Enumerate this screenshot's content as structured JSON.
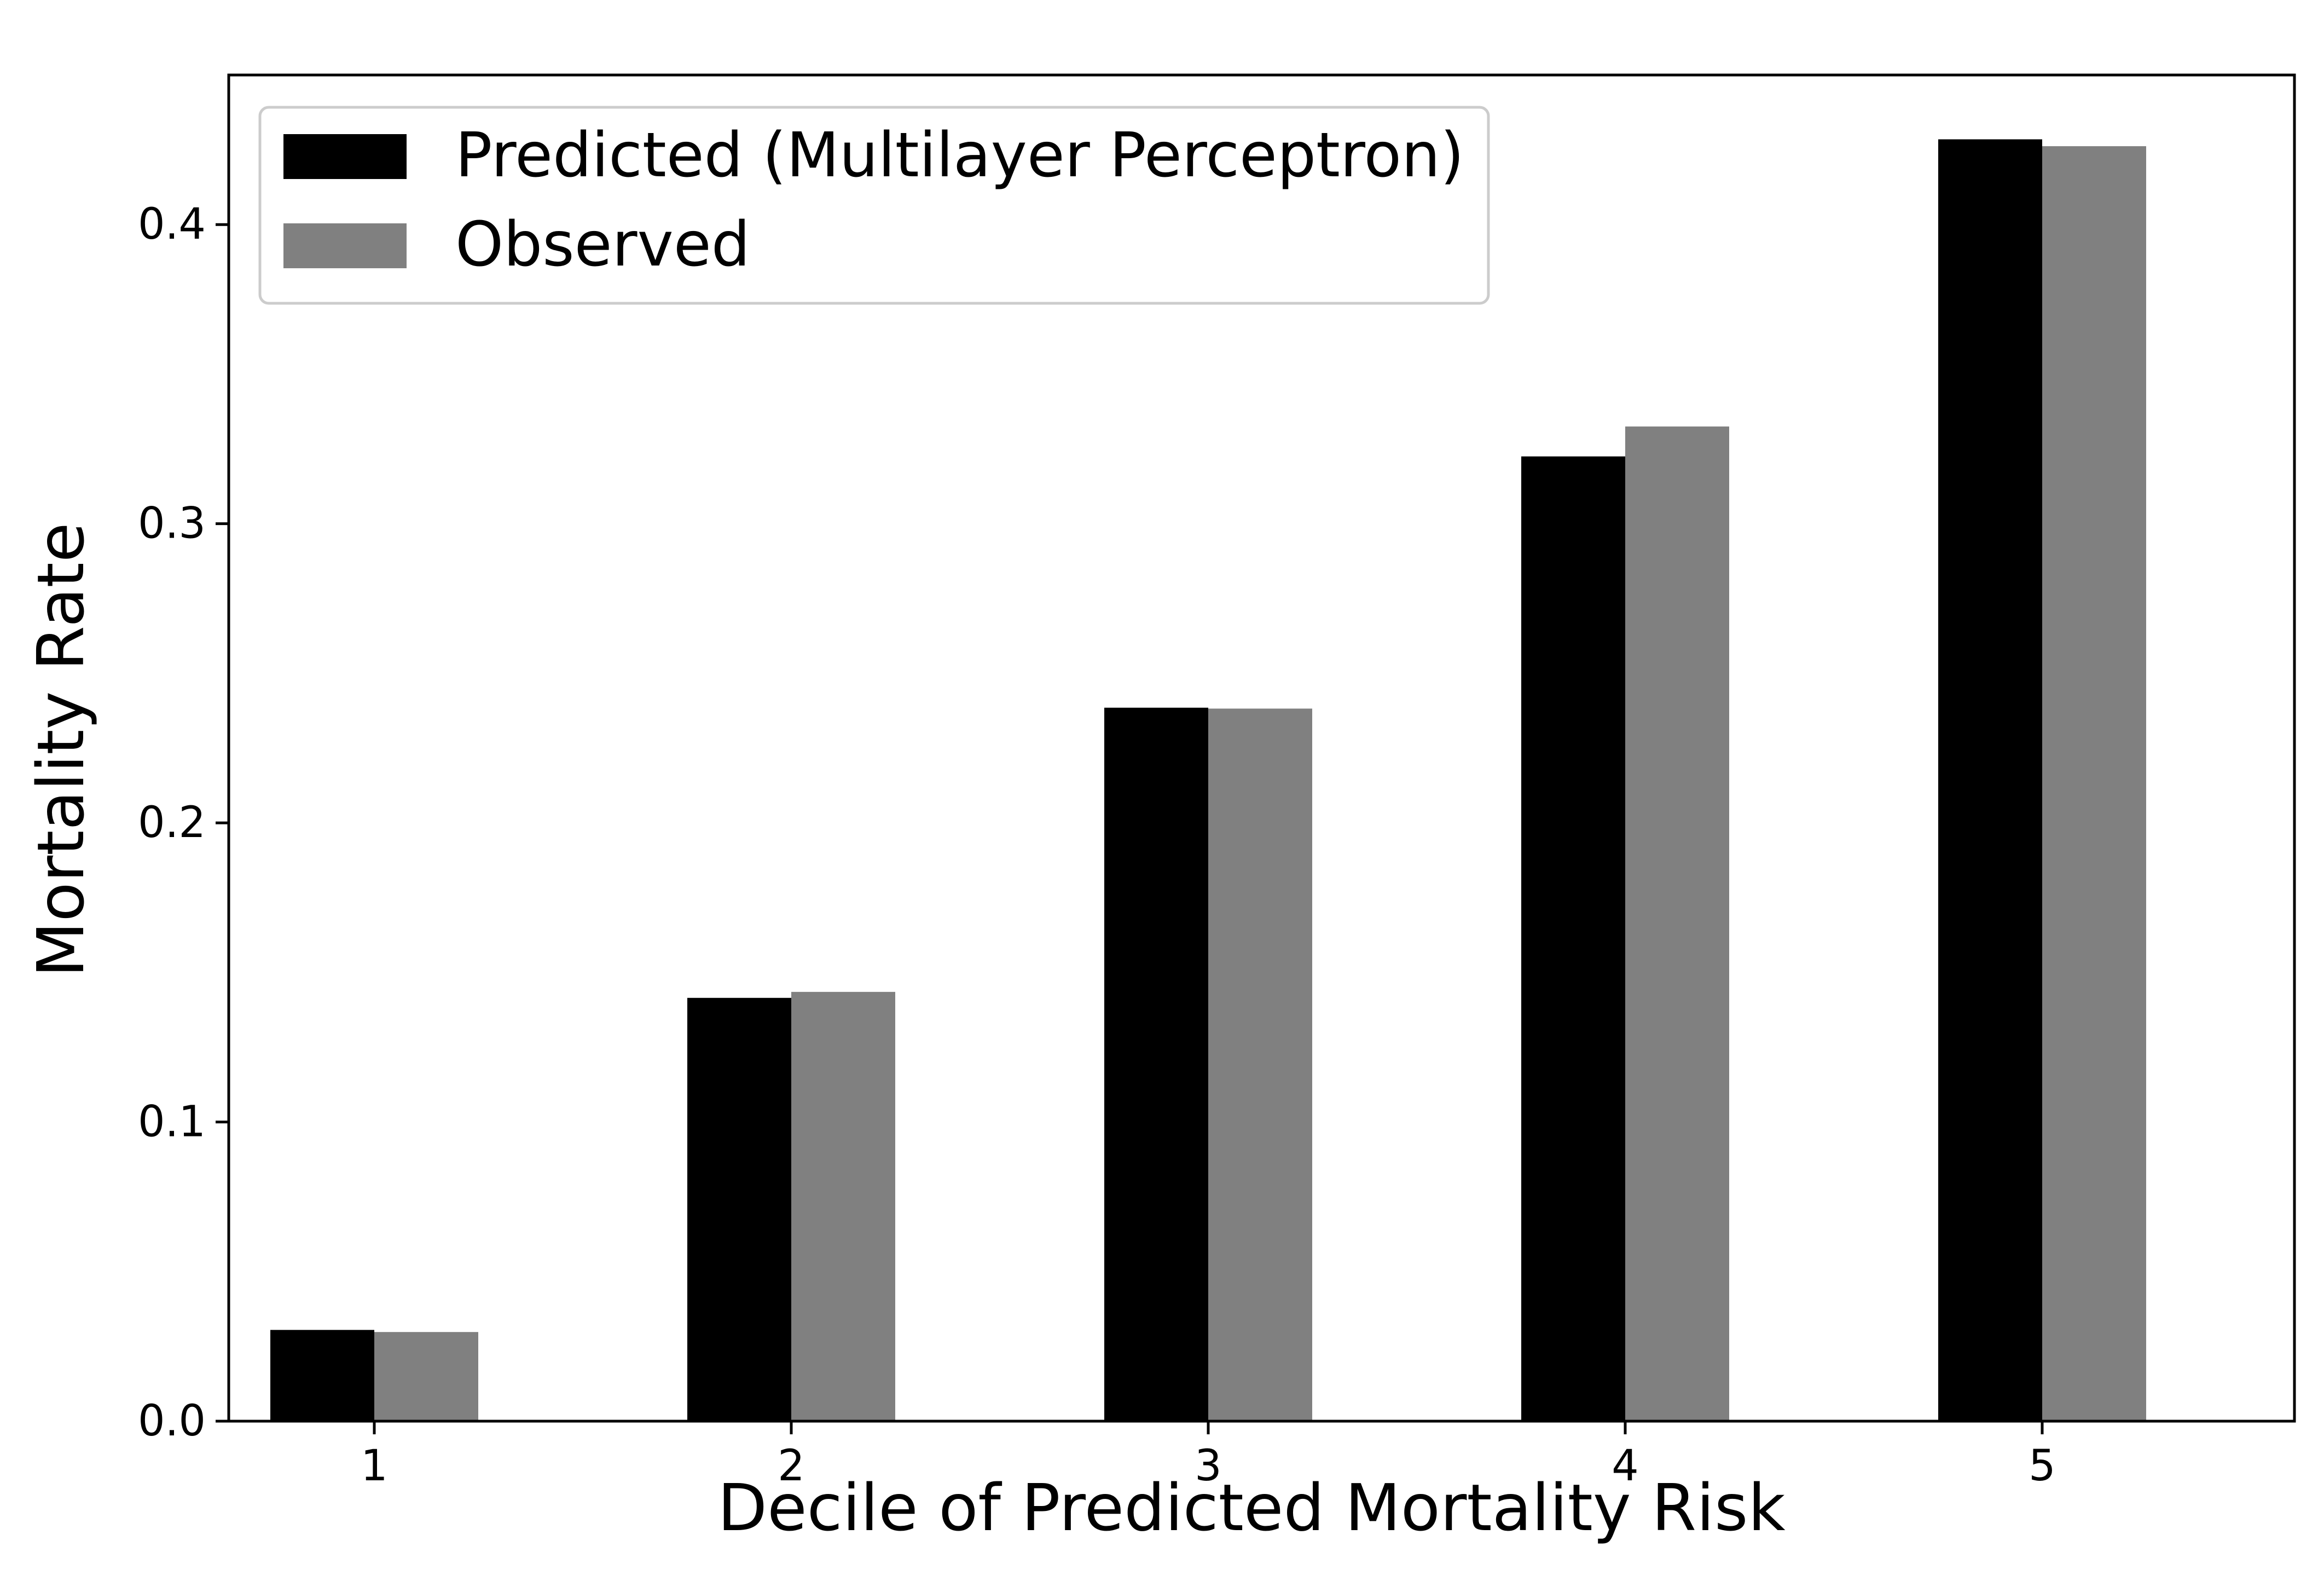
{
  "chart_data": {
    "type": "bar",
    "title": "",
    "xlabel": "Decile of Predicted Mortality Risk",
    "ylabel": "Mortality Rate",
    "categories": [
      "1",
      "2",
      "3",
      "4",
      "5"
    ],
    "series": [
      {
        "name": "Predicted (Multilayer Perceptron)",
        "color": "#000000",
        "values": [
          0.0305,
          0.1415,
          0.2385,
          0.3225,
          0.4285
        ]
      },
      {
        "name": "Observed",
        "color": "#808080",
        "values": [
          0.0298,
          0.1435,
          0.2382,
          0.3325,
          0.4262
        ]
      }
    ],
    "ylim": [
      0,
      0.45
    ],
    "yticks": [
      0.0,
      0.1,
      0.2,
      0.3,
      0.4
    ],
    "ytick_labels": [
      "0.0",
      "0.1",
      "0.2",
      "0.3",
      "0.4"
    ],
    "grid": false,
    "legend_position": "top-left"
  }
}
